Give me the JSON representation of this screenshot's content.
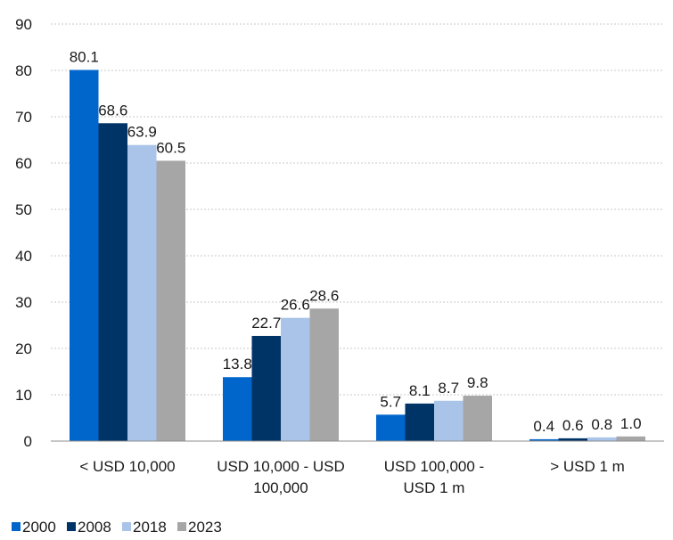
{
  "chart_data": {
    "type": "bar",
    "categories": [
      [
        "< USD 10,000"
      ],
      [
        "USD 10,000 - USD",
        "100,000"
      ],
      [
        "USD 100,000 -",
        "USD 1 m"
      ],
      [
        "> USD 1 m"
      ]
    ],
    "series": [
      {
        "name": "2000",
        "color": "#0066cc",
        "values": [
          80.1,
          13.8,
          5.7,
          0.4
        ],
        "labels": [
          "80.1",
          "13.8",
          "5.7",
          "0.4"
        ]
      },
      {
        "name": "2008",
        "color": "#003366",
        "values": [
          68.6,
          22.7,
          8.1,
          0.6
        ],
        "labels": [
          "68.6",
          "22.7",
          "8.1",
          "0.6"
        ]
      },
      {
        "name": "2018",
        "color": "#a9c4e8",
        "values": [
          63.9,
          26.6,
          8.7,
          0.8
        ],
        "labels": [
          "63.9",
          "26.6",
          "8.7",
          "0.8"
        ]
      },
      {
        "name": "2023",
        "color": "#a6a6a6",
        "values": [
          60.5,
          28.6,
          9.8,
          1.0
        ],
        "labels": [
          "60.5",
          "28.6",
          "9.8",
          "1.0"
        ]
      }
    ],
    "ylim": [
      0,
      90
    ],
    "yticks": [
      "0",
      "10",
      "20",
      "30",
      "40",
      "50",
      "60",
      "70",
      "80",
      "90"
    ],
    "grid": "horizontal dotted",
    "legend_position": "bottom-left",
    "title": "",
    "xlabel": "",
    "ylabel": ""
  }
}
